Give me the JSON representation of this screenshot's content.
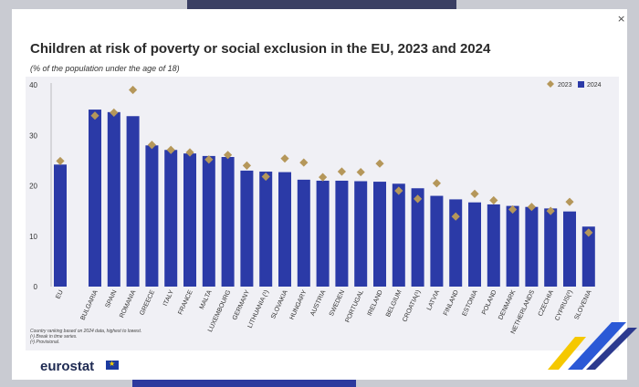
{
  "window": {
    "close_label": "×"
  },
  "chart_data": {
    "type": "bar",
    "title": "Children at risk of poverty or social exclusion in the EU, 2023 and 2024",
    "subtitle": "(% of the population under the age of 18)",
    "categories": [
      "EU",
      "Bulgaria",
      "Spain",
      "Romania",
      "Greece",
      "Italy",
      "France",
      "Malta",
      "Luxembourg",
      "Germany",
      "Lithuania (¹)",
      "Slovakia",
      "Hungary",
      "Austria",
      "Sweden",
      "Portugal",
      "Ireland",
      "Belgium",
      "Croatia(¹)",
      "Latvia",
      "Finland",
      "Estonia",
      "Poland",
      "Denmark",
      "Netherlands",
      "Czechia",
      "Cyprus(²)",
      "Slovenia"
    ],
    "series": [
      {
        "name": "2023",
        "values": [
          24.9,
          33.9,
          34.5,
          39.0,
          28.1,
          27.1,
          26.6,
          25.2,
          26.1,
          24.0,
          21.8,
          25.4,
          24.6,
          21.7,
          22.8,
          22.7,
          24.4,
          19.0,
          17.4,
          20.5,
          13.9,
          18.4,
          17.1,
          15.3,
          15.8,
          15.0,
          16.8,
          10.7
        ]
      },
      {
        "name": "2024",
        "values": [
          24.2,
          35.1,
          34.6,
          33.8,
          28.0,
          27.1,
          26.4,
          25.9,
          25.7,
          23.0,
          22.8,
          22.7,
          21.2,
          21.0,
          21.0,
          20.9,
          20.8,
          20.4,
          19.5,
          18.0,
          17.3,
          16.7,
          16.3,
          16.0,
          15.8,
          15.5,
          14.9,
          11.9
        ]
      }
    ],
    "ylim": [
      0,
      40
    ],
    "yticks": [
      0,
      10,
      20,
      30,
      40
    ],
    "legend": {
      "position": "top-right",
      "labels": [
        "2023",
        "2024"
      ]
    },
    "grid": false,
    "colors": {
      "2024": "#2b3aa7",
      "2023": "#b5975a"
    }
  },
  "notes": [
    "Country ranking based on 2024 data, highest to lowest.",
    "(¹) Break in time series.",
    "(²) Provisional."
  ],
  "footer": {
    "logo": "eurostat"
  }
}
